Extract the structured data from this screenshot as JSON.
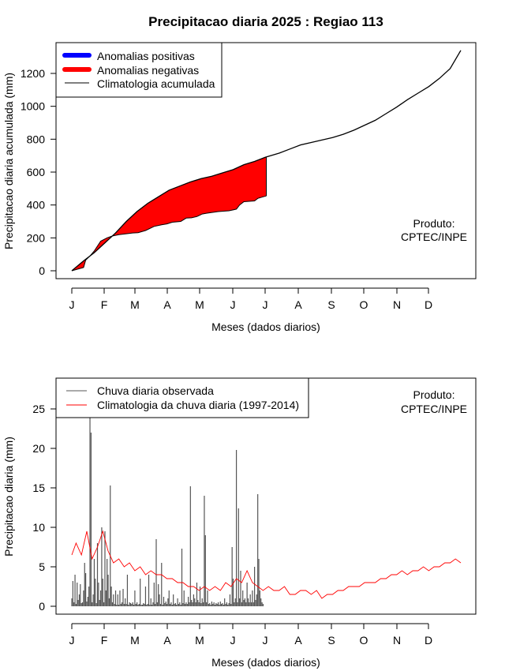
{
  "title": "Precipitacao diaria 2025 : Regiao 113",
  "chart_data": [
    {
      "type": "area",
      "ylabel": "Precipitacao diaria acumulada (mm)",
      "xlabel": "Meses (dados diarios)",
      "xticks": [
        "J",
        "F",
        "M",
        "A",
        "M",
        "J",
        "J",
        "A",
        "S",
        "O",
        "N",
        "D"
      ],
      "ylim": [
        0,
        1350
      ],
      "yticks": [
        0,
        200,
        400,
        600,
        800,
        1000,
        1200
      ],
      "legend_position": "top-left",
      "legend": [
        {
          "label": "Anomalias positivas",
          "color": "#0000ff"
        },
        {
          "label": "Anomalias negativas",
          "color": "#ff0000"
        },
        {
          "label": "Climatologia acumulada",
          "color": "#000000"
        }
      ],
      "note": [
        "Produto:",
        "CPTEC/INPE"
      ],
      "climatology": {
        "day": [
          1,
          12,
          22,
          32,
          42,
          52,
          62,
          72,
          82,
          92,
          102,
          112,
          122,
          132,
          142,
          152,
          162,
          172,
          182,
          195,
          205,
          215,
          225,
          235,
          245,
          255,
          265,
          275,
          285,
          295,
          305,
          315,
          325,
          335,
          345,
          355,
          365
        ],
        "value": [
          0,
          60,
          110,
          170,
          230,
          300,
          360,
          410,
          450,
          490,
          515,
          540,
          560,
          575,
          595,
          615,
          645,
          665,
          690,
          715,
          740,
          765,
          780,
          795,
          810,
          830,
          855,
          885,
          915,
          955,
          995,
          1040,
          1080,
          1120,
          1170,
          1230,
          1340
        ]
      },
      "observed": {
        "day": [
          1,
          12,
          14,
          18,
          22,
          28,
          34,
          38,
          45,
          52,
          58,
          63,
          70,
          78,
          85,
          90,
          95,
          103,
          108,
          113,
          118,
          123,
          127,
          138,
          148,
          152,
          155,
          158,
          162,
          172,
          175,
          180,
          183
        ],
        "value": [
          0,
          20,
          65,
          90,
          120,
          180,
          200,
          210,
          220,
          225,
          230,
          232,
          245,
          270,
          280,
          285,
          295,
          300,
          320,
          322,
          330,
          345,
          350,
          360,
          365,
          370,
          375,
          400,
          420,
          425,
          440,
          450,
          455
        ]
      }
    },
    {
      "type": "bar",
      "ylabel": "Precipitacao diaria (mm)",
      "xlabel": "Meses (dados diarios)",
      "xticks": [
        "J",
        "F",
        "M",
        "A",
        "M",
        "J",
        "J",
        "A",
        "S",
        "O",
        "N",
        "D"
      ],
      "ylim": [
        0,
        27
      ],
      "yticks": [
        0,
        5,
        10,
        15,
        20,
        25
      ],
      "legend_position": "top-left",
      "legend": [
        {
          "label": "Chuva diaria observada",
          "color": "#000000"
        },
        {
          "label": "Climatologia da chuva diaria (1997-2014)",
          "color": "#ff0000"
        }
      ],
      "note": [
        "Produto:",
        "CPTEC/INPE"
      ],
      "observed": [
        [
          1,
          1.0
        ],
        [
          2,
          3.2
        ],
        [
          3,
          0.5
        ],
        [
          4,
          4.0
        ],
        [
          5,
          0.3
        ],
        [
          6,
          3.0
        ],
        [
          7,
          0.8
        ],
        [
          8,
          1.5
        ],
        [
          9,
          2.8
        ],
        [
          10,
          0.4
        ],
        [
          11,
          0.5
        ],
        [
          12,
          2.0
        ],
        [
          13,
          5.5
        ],
        [
          14,
          4.2
        ],
        [
          15,
          0.6
        ],
        [
          16,
          1.2
        ],
        [
          17,
          2.5
        ],
        [
          18,
          24.0
        ],
        [
          19,
          22.0
        ],
        [
          20,
          0.5
        ],
        [
          21,
          1.5
        ],
        [
          22,
          6.0
        ],
        [
          23,
          3.5
        ],
        [
          24,
          0.4
        ],
        [
          25,
          8.0
        ],
        [
          26,
          3.0
        ],
        [
          27,
          0.8
        ],
        [
          28,
          2.0
        ],
        [
          29,
          10.0
        ],
        [
          30,
          3.5
        ],
        [
          31,
          0.5
        ],
        [
          32,
          9.5
        ],
        [
          33,
          2.0
        ],
        [
          34,
          6.0
        ],
        [
          35,
          4.0
        ],
        [
          36,
          1.0
        ],
        [
          37,
          15.3
        ],
        [
          38,
          2.5
        ],
        [
          39,
          0.5
        ],
        [
          40,
          1.5
        ],
        [
          41,
          0.3
        ],
        [
          42,
          2.0
        ],
        [
          43,
          0.2
        ],
        [
          44,
          1.5
        ],
        [
          45,
          0.2
        ],
        [
          46,
          2.0
        ],
        [
          47,
          0.3
        ],
        [
          48,
          0.5
        ],
        [
          49,
          2.2
        ],
        [
          50,
          0.3
        ],
        [
          51,
          1.0
        ],
        [
          52,
          0.3
        ],
        [
          53,
          4.0
        ],
        [
          54,
          0.2
        ],
        [
          55,
          0.5
        ],
        [
          56,
          0.4
        ],
        [
          57,
          0.3
        ],
        [
          58,
          0.5
        ],
        [
          59,
          0.2
        ],
        [
          60,
          2.0
        ],
        [
          61,
          0.3
        ],
        [
          62,
          0.5
        ],
        [
          63,
          0.2
        ],
        [
          64,
          0.3
        ],
        [
          65,
          3.5
        ],
        [
          66,
          0.2
        ],
        [
          67,
          0.2
        ],
        [
          68,
          0.4
        ],
        [
          69,
          0.3
        ],
        [
          70,
          2.5
        ],
        [
          71,
          0.2
        ],
        [
          72,
          0.3
        ],
        [
          73,
          4.0
        ],
        [
          74,
          0.2
        ],
        [
          75,
          1.0
        ],
        [
          76,
          0.2
        ],
        [
          77,
          0.5
        ],
        [
          78,
          3.0
        ],
        [
          79,
          0.3
        ],
        [
          80,
          8.5
        ],
        [
          81,
          0.5
        ],
        [
          82,
          2.8
        ],
        [
          83,
          1.5
        ],
        [
          84,
          0.3
        ],
        [
          85,
          5.5
        ],
        [
          86,
          0.2
        ],
        [
          87,
          1.2
        ],
        [
          88,
          0.4
        ],
        [
          89,
          0.6
        ],
        [
          90,
          0.3
        ],
        [
          91,
          1.0
        ],
        [
          92,
          2.0
        ],
        [
          93,
          0.3
        ],
        [
          94,
          0.5
        ],
        [
          95,
          0.2
        ],
        [
          96,
          1.5
        ],
        [
          97,
          0.3
        ],
        [
          98,
          0.4
        ],
        [
          99,
          0.2
        ],
        [
          100,
          1.0
        ],
        [
          101,
          0.3
        ],
        [
          102,
          0.5
        ],
        [
          103,
          0.2
        ],
        [
          104,
          7.3
        ],
        [
          105,
          0.4
        ],
        [
          106,
          2.0
        ],
        [
          107,
          0.3
        ],
        [
          108,
          0.5
        ],
        [
          109,
          0.3
        ],
        [
          110,
          1.2
        ],
        [
          111,
          0.5
        ],
        [
          112,
          15.2
        ],
        [
          113,
          0.8
        ],
        [
          114,
          0.5
        ],
        [
          115,
          1.5
        ],
        [
          116,
          1.0
        ],
        [
          117,
          0.5
        ],
        [
          118,
          3.0
        ],
        [
          119,
          0.8
        ],
        [
          120,
          0.5
        ],
        [
          121,
          2.5
        ],
        [
          122,
          0.4
        ],
        [
          123,
          1.0
        ],
        [
          124,
          0.5
        ],
        [
          125,
          14.0
        ],
        [
          126,
          9.0
        ],
        [
          127,
          0.5
        ],
        [
          128,
          2.0
        ],
        [
          129,
          0.3
        ],
        [
          130,
          0.4
        ],
        [
          131,
          0.2
        ],
        [
          132,
          0.6
        ],
        [
          133,
          0.3
        ],
        [
          134,
          0.5
        ],
        [
          135,
          0.2
        ],
        [
          136,
          0.4
        ],
        [
          137,
          0.3
        ],
        [
          138,
          0.5
        ],
        [
          139,
          0.2
        ],
        [
          140,
          0.6
        ],
        [
          141,
          0.3
        ],
        [
          142,
          0.4
        ],
        [
          143,
          0.2
        ],
        [
          144,
          1.0
        ],
        [
          145,
          0.3
        ],
        [
          146,
          0.5
        ],
        [
          147,
          0.2
        ],
        [
          148,
          0.4
        ],
        [
          149,
          1.5
        ],
        [
          150,
          0.3
        ],
        [
          151,
          7.5
        ],
        [
          152,
          3.5
        ],
        [
          153,
          0.5
        ],
        [
          154,
          1.0
        ],
        [
          155,
          19.8
        ],
        [
          156,
          0.5
        ],
        [
          157,
          12.4
        ],
        [
          158,
          1.0
        ],
        [
          159,
          4.5
        ],
        [
          160,
          0.5
        ],
        [
          161,
          2.0
        ],
        [
          162,
          0.8
        ],
        [
          163,
          1.0
        ],
        [
          164,
          0.5
        ],
        [
          165,
          3.0
        ],
        [
          166,
          1.0
        ],
        [
          167,
          0.5
        ],
        [
          168,
          1.5
        ],
        [
          169,
          0.5
        ],
        [
          170,
          2.0
        ],
        [
          171,
          0.5
        ],
        [
          172,
          5.0
        ],
        [
          173,
          0.8
        ],
        [
          174,
          1.5
        ],
        [
          175,
          14.2
        ],
        [
          176,
          6.0
        ],
        [
          177,
          2.0
        ],
        [
          178,
          1.0
        ],
        [
          179,
          0.5
        ],
        [
          180,
          0.3
        ]
      ],
      "climatology": {
        "day": [
          1,
          5,
          10,
          15,
          20,
          25,
          30,
          35,
          40,
          45,
          50,
          55,
          60,
          65,
          70,
          75,
          80,
          85,
          90,
          95,
          100,
          105,
          110,
          115,
          120,
          125,
          130,
          135,
          140,
          145,
          150,
          155,
          160,
          165,
          170,
          175,
          180,
          185,
          190,
          195,
          200,
          205,
          210,
          215,
          220,
          225,
          230,
          235,
          240,
          245,
          250,
          255,
          260,
          265,
          270,
          275,
          280,
          285,
          290,
          295,
          300,
          305,
          310,
          315,
          320,
          325,
          330,
          335,
          340,
          345,
          350,
          355,
          360,
          365
        ],
        "value": [
          6.5,
          8.0,
          6.5,
          9.5,
          6.0,
          7.5,
          9.5,
          7.0,
          5.5,
          6.0,
          5.0,
          5.5,
          4.5,
          5.0,
          4.0,
          4.5,
          4.0,
          4.0,
          3.5,
          3.5,
          3.0,
          3.0,
          2.5,
          2.5,
          2.0,
          2.5,
          2.0,
          2.5,
          2.0,
          3.0,
          2.5,
          3.5,
          3.0,
          4.5,
          3.0,
          2.5,
          2.0,
          2.5,
          2.0,
          2.0,
          2.5,
          1.5,
          1.5,
          2.0,
          2.0,
          1.5,
          2.0,
          1.0,
          1.5,
          1.5,
          2.0,
          2.0,
          2.5,
          2.5,
          2.5,
          3.0,
          3.0,
          3.0,
          3.5,
          3.5,
          4.0,
          4.0,
          4.5,
          4.0,
          4.5,
          4.5,
          5.0,
          4.5,
          5.0,
          5.0,
          5.5,
          5.5,
          6.0,
          5.5
        ]
      }
    }
  ]
}
